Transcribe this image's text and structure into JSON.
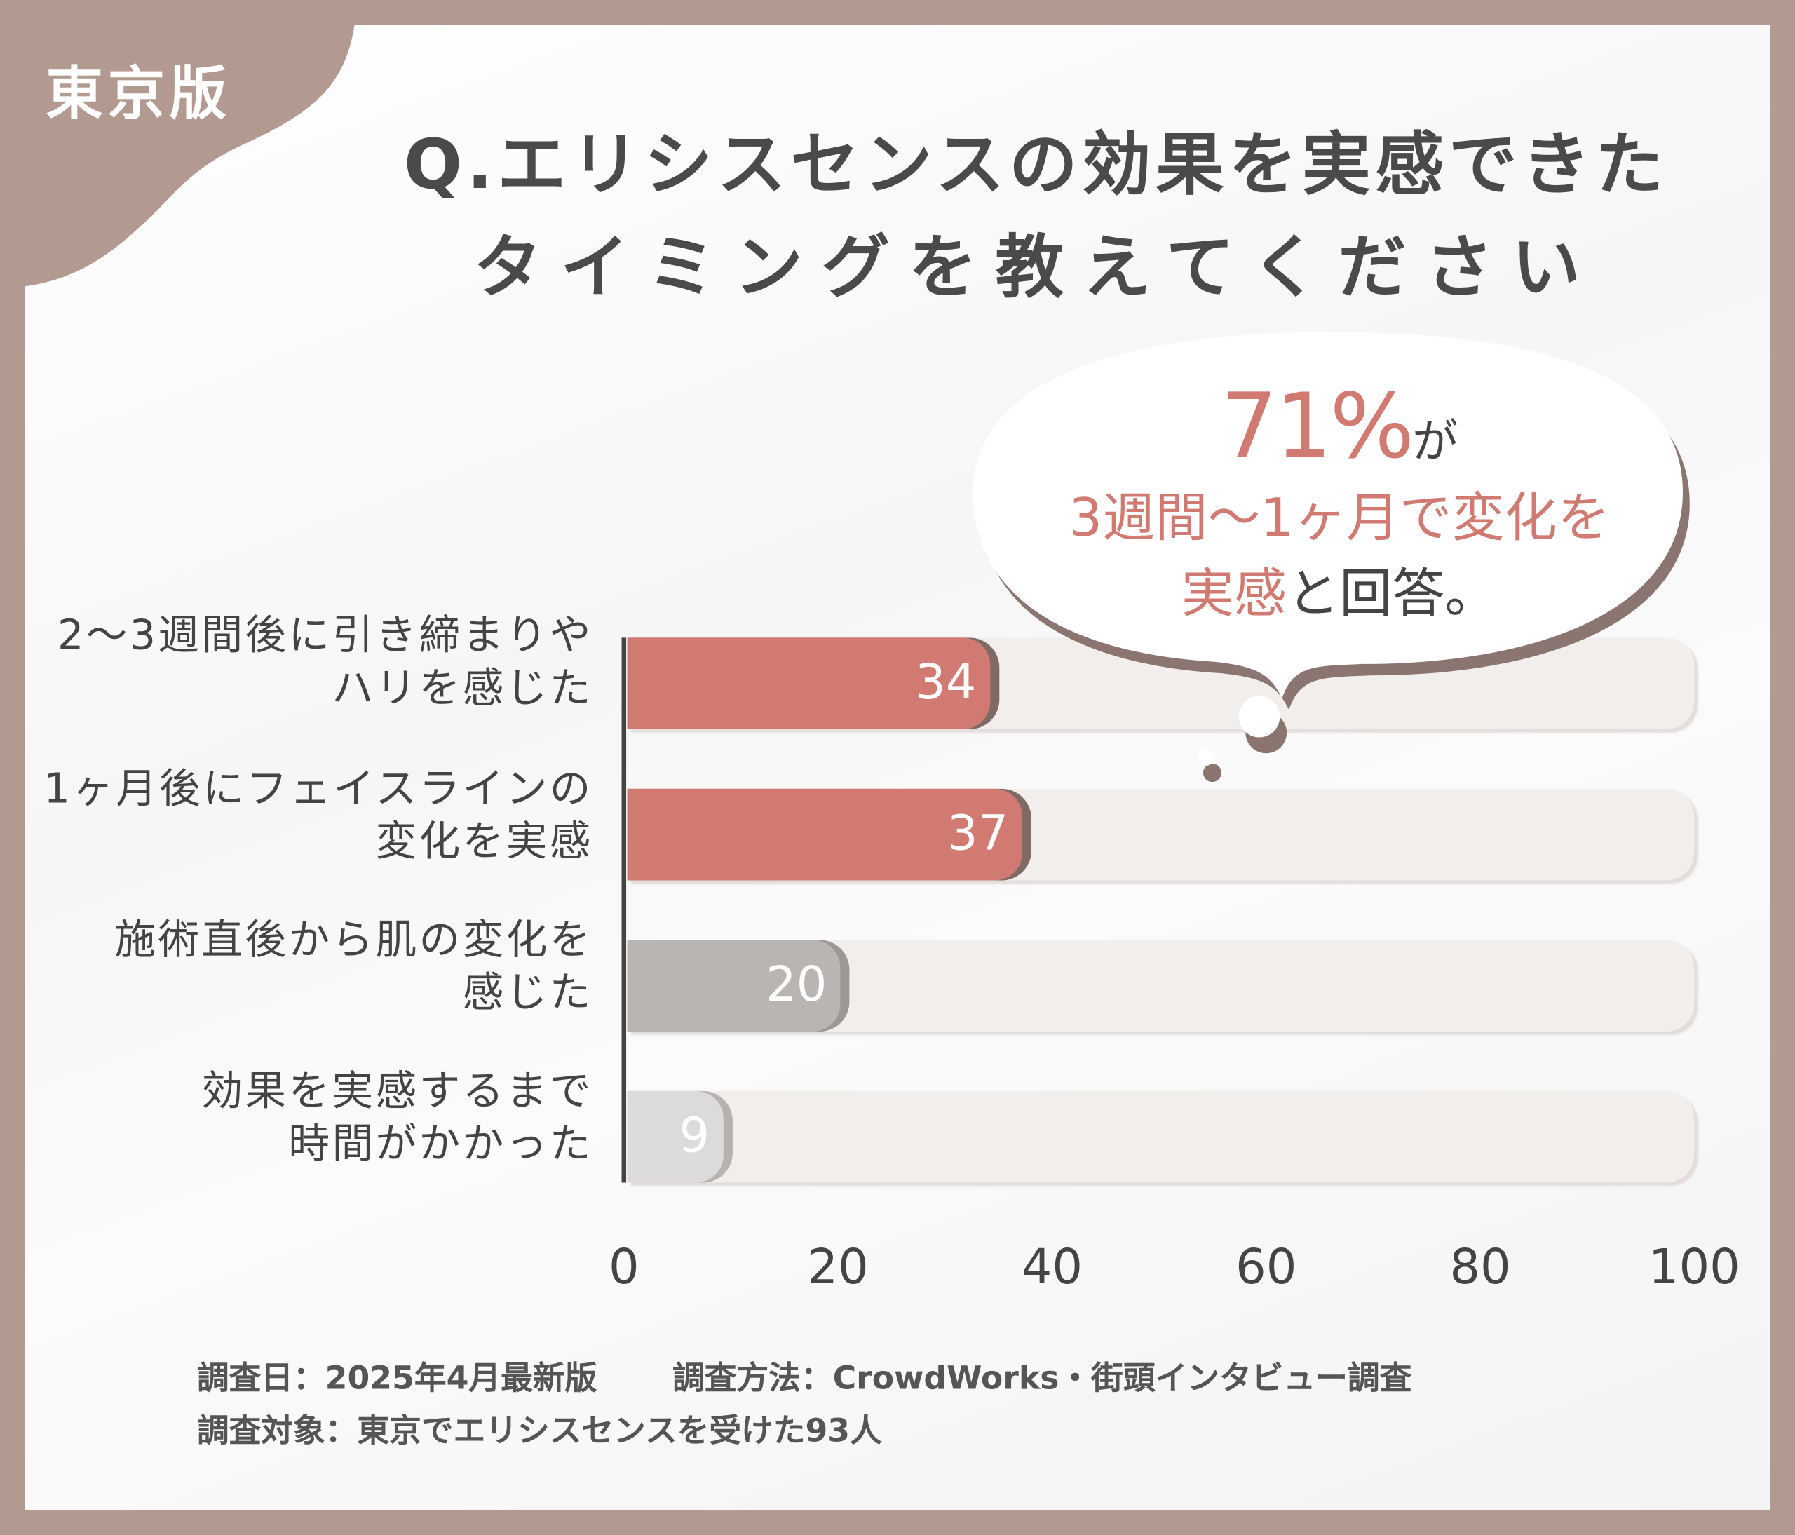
{
  "badge": "東京版",
  "title": {
    "line1": "Q.エリシスセンスの効果を実感できた",
    "line2": "タイミングを教えてください"
  },
  "callout": {
    "percent": "71%",
    "ga": "が",
    "line2": "3週間〜1ヶ月で変化を",
    "line3_highlight": "実感",
    "line3_rest": "と回答。"
  },
  "colors": {
    "frame": "#b39a90",
    "accent": "#d07a72",
    "gray_bar": "#b9b5b3",
    "light_bar": "#dcdadb",
    "track": "#f2eeec"
  },
  "chart_data": {
    "type": "bar",
    "orientation": "horizontal",
    "categories": [
      [
        "2〜3週間後に引き締まりや",
        "ハリを感じた"
      ],
      [
        "1ヶ月後にフェイスラインの",
        "変化を実感"
      ],
      [
        "施術直後から肌の変化を",
        "感じた"
      ],
      [
        "効果を実感するまで",
        "時間がかかった"
      ]
    ],
    "values": [
      34,
      37,
      20,
      9
    ],
    "bar_colors": [
      "#d07a72",
      "#d07a72",
      "#b9b5b3",
      "#dcdadb"
    ],
    "xlim": [
      0,
      100
    ],
    "xticks": [
      "0",
      "20",
      "40",
      "60",
      "80",
      "100"
    ],
    "grid": false
  },
  "footer": {
    "date": "調査日：2025年4月最新版",
    "method": "調査方法：CrowdWorks・街頭インタビュー調査",
    "target": "調査対象：東京でエリシスセンスを受けた93人"
  }
}
